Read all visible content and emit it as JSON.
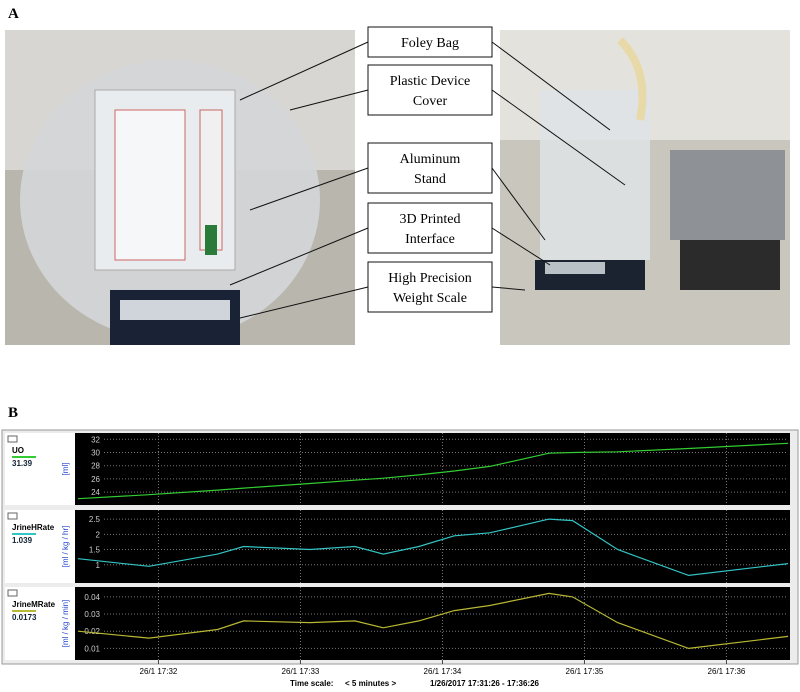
{
  "panels": {
    "a": {
      "label": "A",
      "callouts": [
        {
          "lines": [
            "Foley Bag"
          ]
        },
        {
          "lines": [
            "Plastic Device",
            "Cover"
          ]
        },
        {
          "lines": [
            "Aluminum",
            "Stand"
          ]
        },
        {
          "lines": [
            "3D Printed",
            "Interface"
          ]
        },
        {
          "lines": [
            "High Precision",
            "Weight Scale"
          ]
        }
      ]
    },
    "b": {
      "label": "B"
    }
  },
  "chart_data": [
    {
      "type": "line",
      "y_label": "[ml]",
      "current_value": 31.39,
      "x": [
        0,
        30,
        59,
        70,
        98,
        117,
        129,
        144,
        159,
        174,
        199,
        209,
        228,
        258,
        300
      ],
      "series": [
        {
          "name": "UO",
          "color": "#33cc33",
          "values": [
            23,
            23.6,
            24.3,
            24.6,
            25.3,
            25.8,
            26.1,
            26.6,
            27.2,
            27.9,
            29.9,
            30,
            30.1,
            30.6,
            31.39
          ]
        }
      ],
      "xlim": [
        0,
        300
      ],
      "ylim": [
        22.5,
        32.5
      ],
      "yticks": [
        24,
        26,
        28,
        30,
        32
      ],
      "grid": true
    },
    {
      "type": "line",
      "y_label": "[ml / kg / hr]",
      "current_value": 1.039,
      "x": [
        0,
        30,
        59,
        70,
        98,
        117,
        129,
        144,
        159,
        174,
        199,
        209,
        228,
        258,
        300
      ],
      "series": [
        {
          "name": "JrineHRate",
          "color": "#33c4c4",
          "values": [
            1.2,
            0.95,
            1.35,
            1.6,
            1.5,
            1.6,
            1.35,
            1.6,
            1.95,
            2.05,
            2.5,
            2.45,
            1.5,
            0.65,
            1.04
          ]
        }
      ],
      "xlim": [
        0,
        300
      ],
      "ylim": [
        0.5,
        2.7
      ],
      "yticks": [
        1,
        1.5,
        2,
        2.5
      ],
      "grid": true
    },
    {
      "type": "line",
      "y_label": "[ml / kg / min]",
      "current_value": 0.0173,
      "x": [
        0,
        30,
        59,
        70,
        98,
        117,
        129,
        144,
        159,
        174,
        199,
        209,
        228,
        258,
        300
      ],
      "series": [
        {
          "name": "JrineMRate",
          "color": "#b8b834",
          "values": [
            0.02,
            0.016,
            0.021,
            0.026,
            0.025,
            0.026,
            0.022,
            0.026,
            0.032,
            0.035,
            0.042,
            0.04,
            0.025,
            0.01,
            0.017
          ]
        }
      ],
      "xlim": [
        0,
        300
      ],
      "ylim": [
        0.005,
        0.044
      ],
      "yticks": [
        0.01,
        0.02,
        0.03,
        0.04
      ],
      "grid": true,
      "xticks": [
        {
          "value": 34,
          "label": "26/1 17:32"
        },
        {
          "value": 94,
          "label": "26/1 17:33"
        },
        {
          "value": 154,
          "label": "26/1 17:34"
        },
        {
          "value": 214,
          "label": "26/1 17:35"
        },
        {
          "value": 274,
          "label": "26/1 17:36"
        }
      ]
    }
  ],
  "footer": {
    "label": "Time scale:",
    "window": "< 5 minutes >",
    "range": "1/26/2017 17:31:26 - 17:36:26"
  }
}
